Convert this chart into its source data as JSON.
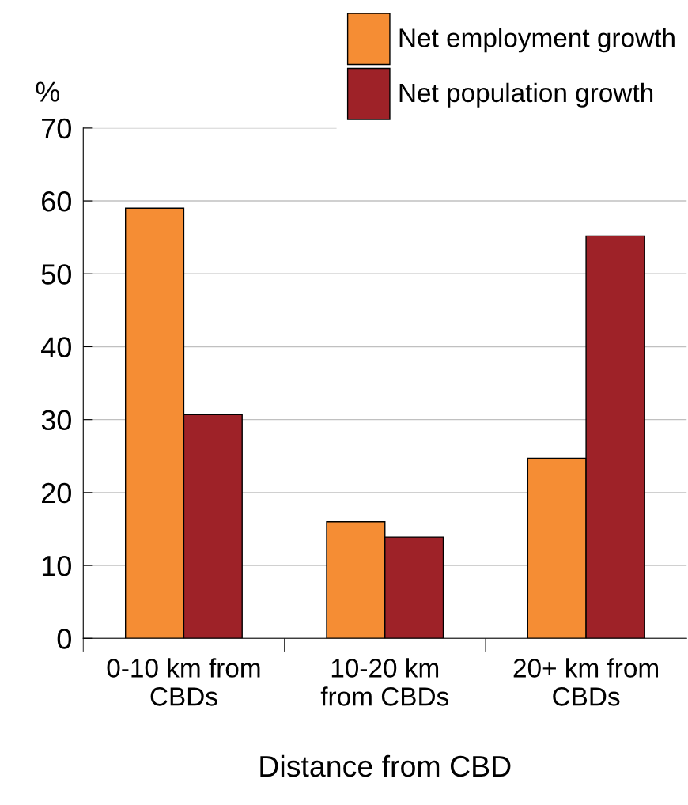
{
  "chart_data": {
    "type": "bar",
    "ylabel": "%",
    "xlabel": "Distance from CBD",
    "categories": [
      "0-10 km from\nCBDs",
      "10-20 km\nfrom CBDs",
      "20+ km from\nCBDs"
    ],
    "series": [
      {
        "name": "Net employment growth",
        "color": "#f58d34",
        "values": [
          59,
          16,
          24.7
        ]
      },
      {
        "name": "Net population growth",
        "color": "#9e2228",
        "values": [
          30.7,
          13.9,
          55.2
        ]
      }
    ],
    "ylim": [
      0,
      70
    ],
    "yticks": [
      0,
      10,
      20,
      30,
      40,
      50,
      60,
      70
    ],
    "grid": "y",
    "legend": "top right"
  }
}
